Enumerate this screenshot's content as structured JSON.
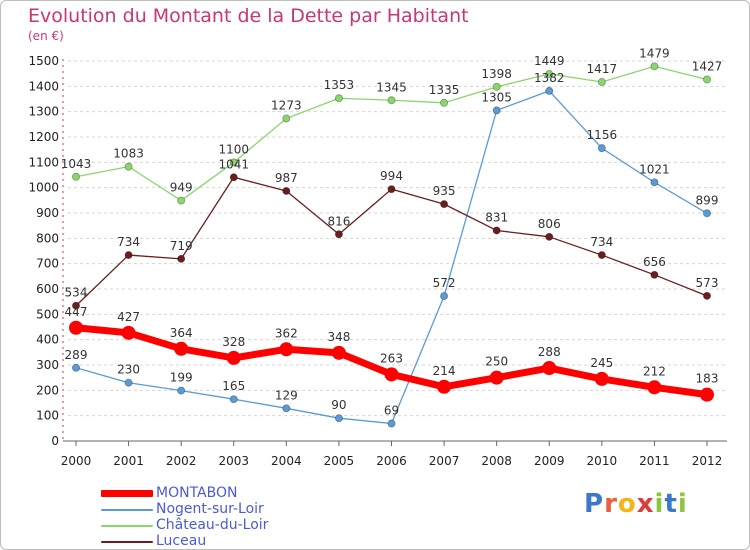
{
  "title": "Evolution du Montant de la Dette par Habitant",
  "unit_label": "(en €)",
  "logo": {
    "text": "Proxiti",
    "colors": [
      "#3a78c9",
      "#e8603c",
      "#f4b41a",
      "#e03a3a",
      "#8cc63f",
      "#3a78c9",
      "#8cc63f"
    ]
  },
  "chart_data": {
    "type": "line",
    "x": [
      "2000",
      "2001",
      "2002",
      "2003",
      "2004",
      "2005",
      "2006",
      "2007",
      "2008",
      "2009",
      "2010",
      "2011",
      "2012"
    ],
    "ylim": [
      0,
      1500
    ],
    "yticks": [
      0,
      100,
      200,
      300,
      400,
      500,
      600,
      700,
      800,
      900,
      1000,
      1100,
      1200,
      1300,
      1400,
      1500
    ],
    "grid": "horizontal dashed",
    "legend_position": "bottom-left",
    "series": [
      {
        "name": "MONTABON",
        "color": "#ff0000",
        "width": 7,
        "values": [
          447,
          427,
          364,
          328,
          362,
          348,
          263,
          214,
          250,
          288,
          245,
          212,
          183
        ]
      },
      {
        "name": "Nogent-sur-Loir",
        "color": "#5a9bd5",
        "width": 1.3,
        "values": [
          289,
          230,
          199,
          165,
          129,
          90,
          69,
          572,
          1305,
          1382,
          1156,
          1021,
          899
        ]
      },
      {
        "name": "Château-du-Loir",
        "color": "#8ad66a",
        "width": 1.3,
        "values": [
          1043,
          1083,
          949,
          1100,
          1273,
          1353,
          1345,
          1335,
          1398,
          1449,
          1417,
          1479,
          1427
        ]
      },
      {
        "name": "Luceau",
        "color": "#6b1e1e",
        "width": 1.3,
        "values": [
          534,
          734,
          719,
          1041,
          987,
          816,
          994,
          935,
          831,
          806,
          734,
          656,
          573
        ]
      }
    ]
  }
}
